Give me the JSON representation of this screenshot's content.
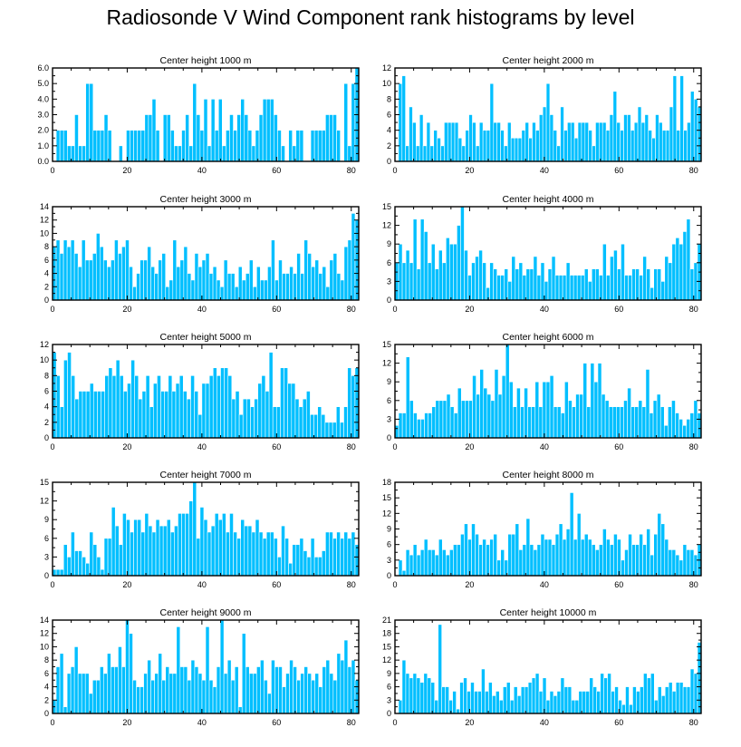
{
  "figure": {
    "title": "Radiosonde V Wind Component rank histograms by level",
    "bar_color": "#00bfff"
  },
  "chart_data": [
    {
      "type": "bar",
      "title": "Center height 1000 m",
      "xlim": [
        0,
        82
      ],
      "ylim": [
        0,
        6
      ],
      "yticks": [
        0,
        1,
        2,
        3,
        4,
        5,
        6
      ],
      "ytick_labels": [
        "0.0",
        "1.0",
        "2.0",
        "3.0",
        "4.0",
        "5.0",
        "6.0"
      ],
      "xticks": [
        0,
        20,
        40,
        60,
        80
      ],
      "xtick_labels": [
        "0",
        "20",
        "40",
        "60",
        "80"
      ],
      "values": [
        0,
        2,
        2,
        2,
        1,
        1,
        3,
        1,
        1,
        5,
        5,
        2,
        2,
        2,
        3,
        2,
        0,
        0,
        1,
        0,
        2,
        2,
        2,
        2,
        2,
        3,
        3,
        4,
        2,
        0,
        3,
        3,
        2,
        1,
        1,
        2,
        3,
        1,
        5,
        3,
        2,
        4,
        1,
        4,
        2,
        4,
        1,
        2,
        3,
        2,
        3,
        4,
        3,
        2,
        1,
        2,
        3,
        4,
        4,
        4,
        3,
        2,
        1,
        0,
        2,
        1,
        2,
        2,
        0,
        0,
        2,
        2,
        2,
        2,
        3,
        3,
        3,
        2,
        0,
        5,
        1,
        5,
        6
      ]
    },
    {
      "type": "bar",
      "title": "Center height 2000 m",
      "xlim": [
        0,
        82
      ],
      "ylim": [
        0,
        12
      ],
      "yticks": [
        0,
        2,
        4,
        6,
        8,
        10,
        12
      ],
      "ytick_labels": [
        "0",
        "2",
        "4",
        "6",
        "8",
        "10",
        "12"
      ],
      "xticks": [
        0,
        20,
        40,
        60,
        80
      ],
      "xtick_labels": [
        "0",
        "20",
        "40",
        "60",
        "80"
      ],
      "values": [
        0,
        10,
        11,
        2,
        7,
        5,
        2,
        6,
        2,
        5,
        2,
        4,
        3,
        2,
        5,
        5,
        5,
        5,
        3,
        2,
        4,
        6,
        5,
        2,
        5,
        4,
        4,
        10,
        5,
        5,
        4,
        2,
        5,
        3,
        3,
        3,
        4,
        5,
        3,
        5,
        4,
        6,
        7,
        10,
        6,
        4,
        2,
        7,
        4,
        5,
        5,
        3,
        5,
        5,
        5,
        4,
        2,
        5,
        5,
        5,
        4,
        6,
        9,
        5,
        4,
        6,
        6,
        4,
        5,
        7,
        5,
        6,
        4,
        3,
        6,
        5,
        4,
        4,
        7,
        11,
        4,
        11,
        4,
        5,
        9,
        8,
        7
      ]
    },
    {
      "type": "bar",
      "title": "Center height 3000 m",
      "xlim": [
        0,
        82
      ],
      "ylim": [
        0,
        14
      ],
      "yticks": [
        0,
        2,
        4,
        6,
        8,
        10,
        12,
        14
      ],
      "ytick_labels": [
        "0",
        "2",
        "4",
        "6",
        "8",
        "10",
        "12",
        "14"
      ],
      "xticks": [
        0,
        20,
        40,
        60,
        80
      ],
      "xtick_labels": [
        "0",
        "20",
        "40",
        "60",
        "80"
      ],
      "values": [
        8,
        9,
        7,
        9,
        8,
        9,
        7,
        5,
        9,
        6,
        6,
        7,
        10,
        8,
        6,
        5,
        6,
        9,
        7,
        8,
        9,
        5,
        2,
        4,
        6,
        6,
        8,
        5,
        4,
        6,
        7,
        2,
        3,
        9,
        5,
        6,
        8,
        4,
        3,
        7,
        5,
        6,
        7,
        4,
        5,
        3,
        2,
        6,
        4,
        4,
        2,
        5,
        3,
        4,
        6,
        2,
        5,
        3,
        3,
        5,
        9,
        3,
        6,
        4,
        4,
        5,
        4,
        7,
        4,
        9,
        7,
        5,
        6,
        4,
        5,
        2,
        6,
        7,
        4,
        3,
        8,
        9,
        13,
        12
      ]
    },
    {
      "type": "bar",
      "title": "Center height 4000 m",
      "xlim": [
        0,
        82
      ],
      "ylim": [
        0,
        15
      ],
      "yticks": [
        0,
        3,
        6,
        9,
        12,
        15
      ],
      "ytick_labels": [
        "0",
        "3",
        "6",
        "9",
        "12",
        "15"
      ],
      "xticks": [
        0,
        20,
        40,
        60,
        80
      ],
      "xtick_labels": [
        "0",
        "20",
        "40",
        "60",
        "80"
      ],
      "values": [
        6,
        9,
        6,
        8,
        6,
        13,
        5,
        13,
        11,
        6,
        9,
        5,
        8,
        6,
        10,
        9,
        9,
        12,
        15,
        8,
        4,
        6,
        7,
        8,
        6,
        2,
        6,
        5,
        4,
        4,
        5,
        3,
        7,
        5,
        6,
        4,
        5,
        5,
        7,
        4,
        6,
        3,
        5,
        7,
        4,
        4,
        4,
        6,
        4,
        4,
        4,
        4,
        5,
        3,
        5,
        5,
        4,
        9,
        4,
        7,
        8,
        5,
        9,
        4,
        4,
        5,
        5,
        4,
        7,
        5,
        2,
        5,
        5,
        3,
        7,
        6,
        9,
        10,
        9,
        11,
        13,
        5,
        6,
        9
      ]
    },
    {
      "type": "bar",
      "title": "Center height 5000 m",
      "xlim": [
        0,
        82
      ],
      "ylim": [
        0,
        12
      ],
      "yticks": [
        0,
        2,
        4,
        6,
        8,
        10,
        12
      ],
      "ytick_labels": [
        "0",
        "2",
        "4",
        "6",
        "8",
        "10",
        "12"
      ],
      "xticks": [
        0,
        20,
        40,
        60,
        80
      ],
      "xtick_labels": [
        "0",
        "20",
        "40",
        "60",
        "80"
      ],
      "values": [
        11,
        8,
        4,
        10,
        11,
        8,
        5,
        6,
        6,
        6,
        7,
        6,
        6,
        6,
        8,
        9,
        8,
        10,
        8,
        6,
        7,
        10,
        8,
        5,
        6,
        8,
        4,
        7,
        8,
        6,
        6,
        8,
        6,
        7,
        8,
        6,
        5,
        8,
        6,
        3,
        7,
        7,
        8,
        9,
        8,
        9,
        9,
        8,
        5,
        6,
        3,
        5,
        5,
        4,
        5,
        7,
        8,
        6,
        11,
        4,
        4,
        9,
        9,
        7,
        7,
        5,
        4,
        5,
        6,
        3,
        3,
        4,
        3,
        2,
        2,
        2,
        4,
        2,
        4,
        9,
        8,
        9
      ]
    },
    {
      "type": "bar",
      "title": "Center height 6000 m",
      "xlim": [
        0,
        82
      ],
      "ylim": [
        0,
        15
      ],
      "yticks": [
        0,
        3,
        6,
        9,
        12,
        15
      ],
      "ytick_labels": [
        "0",
        "3",
        "6",
        "9",
        "12",
        "15"
      ],
      "xticks": [
        0,
        20,
        40,
        60,
        80
      ],
      "xtick_labels": [
        "0",
        "20",
        "40",
        "60",
        "80"
      ],
      "values": [
        2,
        4,
        4,
        13,
        6,
        4,
        3,
        3,
        4,
        4,
        5,
        6,
        6,
        6,
        7,
        5,
        4,
        8,
        6,
        6,
        6,
        10,
        7,
        11,
        8,
        7,
        6,
        11,
        7,
        10,
        15,
        9,
        5,
        8,
        5,
        8,
        5,
        5,
        9,
        5,
        9,
        9,
        10,
        5,
        5,
        4,
        9,
        6,
        5,
        7,
        7,
        12,
        5,
        12,
        9,
        12,
        7,
        6,
        5,
        5,
        5,
        5,
        6,
        8,
        5,
        5,
        6,
        5,
        11,
        4,
        6,
        7,
        5,
        2,
        5,
        6,
        4,
        3,
        2,
        3,
        4,
        6,
        4
      ]
    },
    {
      "type": "bar",
      "title": "Center height 7000 m",
      "xlim": [
        0,
        82
      ],
      "ylim": [
        0,
        15
      ],
      "yticks": [
        0,
        3,
        6,
        9,
        12,
        15
      ],
      "ytick_labels": [
        "0",
        "3",
        "6",
        "9",
        "12",
        "15"
      ],
      "xticks": [
        0,
        20,
        40,
        60,
        80
      ],
      "xtick_labels": [
        "0",
        "20",
        "40",
        "60",
        "80"
      ],
      "values": [
        1,
        1,
        1,
        5,
        3,
        7,
        4,
        4,
        3,
        2,
        7,
        5,
        3,
        1,
        6,
        6,
        11,
        8,
        5,
        10,
        9,
        7,
        9,
        9,
        7,
        10,
        8,
        7,
        9,
        8,
        8,
        9,
        7,
        8,
        10,
        10,
        10,
        12,
        15,
        6,
        11,
        9,
        7,
        8,
        10,
        9,
        10,
        7,
        10,
        7,
        6,
        9,
        8,
        8,
        7,
        9,
        7,
        6,
        7,
        7,
        6,
        3,
        8,
        6,
        2,
        5,
        5,
        6,
        4,
        3,
        6,
        3,
        3,
        4,
        7,
        7,
        6,
        7,
        6,
        7,
        6,
        7,
        5
      ]
    },
    {
      "type": "bar",
      "title": "Center height 8000 m",
      "xlim": [
        0,
        82
      ],
      "ylim": [
        0,
        18
      ],
      "yticks": [
        0,
        3,
        6,
        9,
        12,
        15,
        18
      ],
      "ytick_labels": [
        "0",
        "3",
        "6",
        "9",
        "12",
        "15",
        "18"
      ],
      "xticks": [
        0,
        20,
        40,
        60,
        80
      ],
      "xtick_labels": [
        "0",
        "20",
        "40",
        "60",
        "80"
      ],
      "values": [
        0,
        3,
        1,
        5,
        4,
        6,
        4,
        5,
        7,
        5,
        5,
        4,
        7,
        5,
        4,
        5,
        6,
        6,
        8,
        10,
        7,
        10,
        8,
        6,
        7,
        6,
        7,
        8,
        3,
        5,
        3,
        8,
        8,
        10,
        5,
        6,
        11,
        6,
        5,
        6,
        8,
        7,
        7,
        6,
        8,
        10,
        7,
        9,
        16,
        7,
        12,
        7,
        8,
        7,
        6,
        5,
        6,
        9,
        7,
        6,
        8,
        7,
        3,
        5,
        8,
        6,
        6,
        8,
        6,
        9,
        4,
        8,
        12,
        10,
        7,
        5,
        5,
        4,
        3,
        6,
        5,
        5,
        4,
        6
      ]
    },
    {
      "type": "bar",
      "title": "Center height 9000 m",
      "xlim": [
        0,
        82
      ],
      "ylim": [
        0,
        14
      ],
      "yticks": [
        0,
        2,
        4,
        6,
        8,
        10,
        12,
        14
      ],
      "ytick_labels": [
        "0",
        "2",
        "4",
        "6",
        "8",
        "10",
        "12",
        "14"
      ],
      "xticks": [
        0,
        20,
        40,
        60,
        80
      ],
      "xtick_labels": [
        "0",
        "20",
        "40",
        "60",
        "80"
      ],
      "values": [
        2,
        7,
        9,
        1,
        6,
        7,
        10,
        6,
        6,
        6,
        3,
        5,
        5,
        7,
        6,
        9,
        7,
        7,
        10,
        7,
        14,
        12,
        5,
        4,
        4,
        6,
        8,
        5,
        6,
        9,
        5,
        7,
        6,
        6,
        13,
        7,
        7,
        5,
        8,
        7,
        6,
        5,
        13,
        5,
        4,
        7,
        14,
        6,
        8,
        5,
        7,
        1,
        12,
        7,
        6,
        6,
        7,
        8,
        5,
        3,
        8,
        7,
        7,
        4,
        6,
        8,
        7,
        5,
        6,
        7,
        6,
        5,
        6,
        4,
        7,
        8,
        6,
        5,
        9,
        8,
        11,
        7,
        8,
        5
      ]
    },
    {
      "type": "bar",
      "title": "Center height 10000 m",
      "xlim": [
        0,
        82
      ],
      "ylim": [
        0,
        21
      ],
      "yticks": [
        0,
        3,
        6,
        9,
        12,
        15,
        18,
        21
      ],
      "ytick_labels": [
        "0",
        "3",
        "6",
        "9",
        "12",
        "15",
        "18",
        "21"
      ],
      "xticks": [
        0,
        20,
        40,
        60,
        80
      ],
      "xtick_labels": [
        "0",
        "20",
        "40",
        "60",
        "80"
      ],
      "values": [
        0,
        3,
        12,
        9,
        8,
        9,
        8,
        7,
        9,
        8,
        7,
        3,
        20,
        6,
        6,
        3,
        5,
        1,
        7,
        8,
        5,
        7,
        5,
        5,
        10,
        5,
        7,
        4,
        5,
        3,
        6,
        7,
        3,
        6,
        4,
        6,
        6,
        7,
        8,
        9,
        5,
        8,
        3,
        5,
        4,
        5,
        8,
        6,
        6,
        3,
        3,
        5,
        5,
        5,
        8,
        6,
        5,
        9,
        8,
        9,
        5,
        6,
        3,
        2,
        6,
        2,
        6,
        5,
        6,
        9,
        8,
        9,
        3,
        6,
        4,
        6,
        7,
        5,
        7,
        7,
        6,
        6,
        10,
        9,
        16
      ]
    }
  ]
}
